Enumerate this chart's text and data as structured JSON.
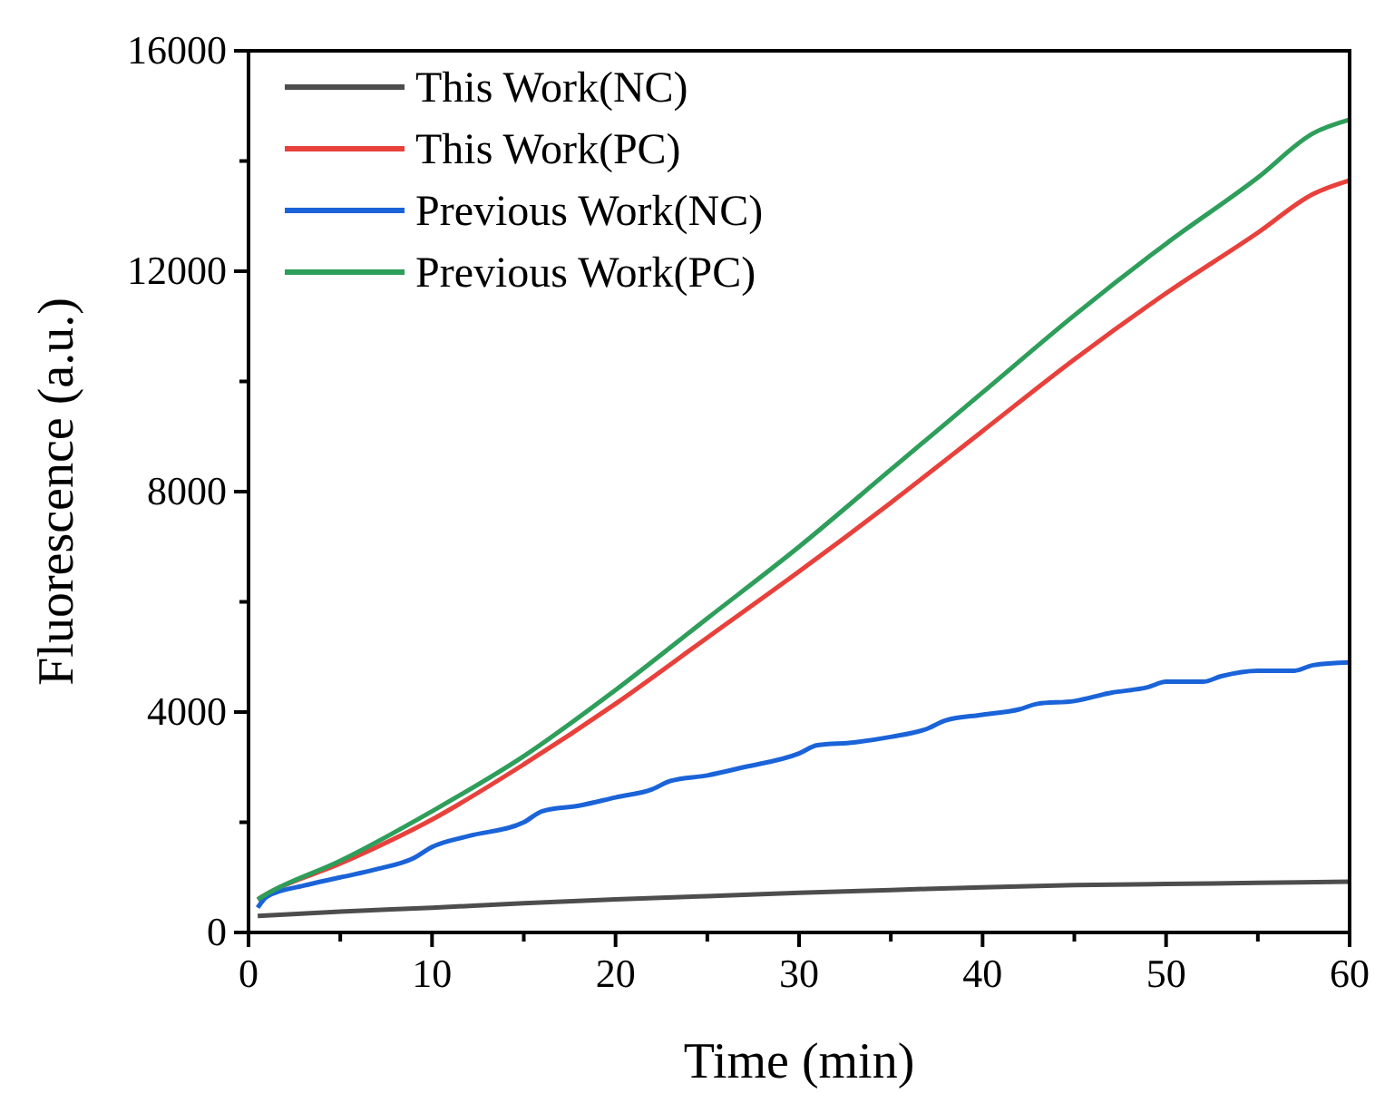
{
  "chart_data": {
    "type": "line",
    "xlabel": "Time (min)",
    "ylabel": "Fluorescence (a.u.)",
    "xlim": [
      0,
      60
    ],
    "xticks": [
      0,
      {
        "value": 5,
        "label": null
      },
      10,
      {
        "value": 15,
        "label": null
      },
      20,
      {
        "value": 25,
        "label": null
      },
      30,
      {
        "value": 35,
        "label": null
      },
      40,
      {
        "value": 45,
        "label": null
      },
      50,
      {
        "value": 55,
        "label": null
      },
      60
    ],
    "ylim": [
      0,
      16000
    ],
    "yticks": [
      0,
      {
        "value": 2000,
        "label": null
      },
      4000,
      {
        "value": 6000,
        "label": null
      },
      8000,
      {
        "value": 10000,
        "label": null
      },
      12000,
      {
        "value": 14000,
        "label": null
      },
      16000
    ],
    "legend": "top left",
    "grid": false,
    "marker": "none",
    "line_style": "solid",
    "series": [
      {
        "name": "This Work(NC)",
        "color": "#4d4d4d",
        "x": [
          0.5,
          5,
          10,
          15,
          20,
          25,
          30,
          35,
          40,
          45,
          50,
          55,
          60
        ],
        "values": [
          300,
          380,
          450,
          530,
          600,
          660,
          720,
          770,
          820,
          860,
          880,
          900,
          920
        ]
      },
      {
        "name": "This Work(PC)",
        "color": "#e8413c",
        "x": [
          0.5,
          1,
          5,
          10,
          15,
          20,
          25,
          30,
          35,
          40,
          45,
          50,
          55,
          58,
          60
        ],
        "values": [
          600,
          700,
          1250,
          2050,
          3050,
          4150,
          5350,
          6550,
          7800,
          9100,
          10400,
          11600,
          12700,
          13400,
          13650
        ]
      },
      {
        "name": "Previous Work(NC)",
        "color": "#1a63d8",
        "x": [
          0.5,
          1,
          3,
          5,
          7,
          9,
          10,
          12,
          15,
          16,
          18,
          20,
          22,
          23,
          25,
          27,
          30,
          31,
          33,
          35,
          37,
          38,
          40,
          42,
          43,
          45,
          47,
          49,
          50,
          52,
          53,
          55,
          57,
          58,
          60
        ],
        "values": [
          450,
          650,
          850,
          1000,
          1150,
          1350,
          1550,
          1750,
          2000,
          2200,
          2300,
          2450,
          2600,
          2750,
          2850,
          3000,
          3250,
          3400,
          3450,
          3550,
          3700,
          3850,
          3950,
          4050,
          4150,
          4200,
          4350,
          4450,
          4550,
          4550,
          4650,
          4750,
          4750,
          4850,
          4900
        ]
      },
      {
        "name": "Previous Work(PC)",
        "color": "#2e9e5b",
        "x": [
          0.5,
          1,
          5,
          10,
          15,
          20,
          25,
          30,
          35,
          40,
          45,
          50,
          55,
          58,
          60
        ],
        "values": [
          600,
          700,
          1300,
          2200,
          3200,
          4400,
          5700,
          7000,
          8400,
          9800,
          11200,
          12500,
          13700,
          14500,
          14750
        ]
      }
    ]
  }
}
